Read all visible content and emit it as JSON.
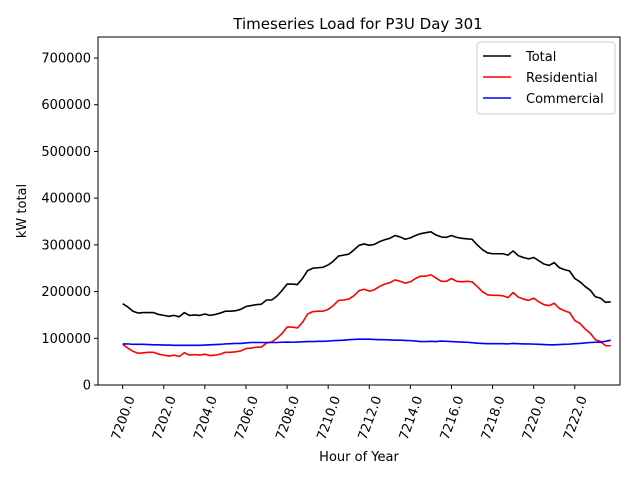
{
  "chart_data": {
    "type": "line",
    "title": "Timeseries Load for P3U   Day 301",
    "xlabel": "Hour of Year",
    "ylabel": "kW total",
    "xlim": [
      7198.8,
      7224.2
    ],
    "ylim": [
      0,
      745000
    ],
    "xticks": [
      7200,
      7202,
      7204,
      7206,
      7208,
      7210,
      7212,
      7214,
      7216,
      7218,
      7220,
      7222
    ],
    "xtick_labels": [
      "7200.0",
      "7202.0",
      "7204.0",
      "7206.0",
      "7208.0",
      "7210.0",
      "7212.0",
      "7214.0",
      "7216.0",
      "7218.0",
      "7220.0",
      "7222.0"
    ],
    "yticks": [
      0,
      100000,
      200000,
      300000,
      400000,
      500000,
      600000,
      700000
    ],
    "ytick_labels": [
      "0",
      "100000",
      "200000",
      "300000",
      "400000",
      "500000",
      "600000",
      "700000"
    ],
    "legend_position": "top-right",
    "grid": false,
    "series": [
      {
        "name": "Total",
        "color": "#000000",
        "x": [
          7200.0,
          7200.25,
          7200.5,
          7200.75,
          7201.0,
          7201.25,
          7201.5,
          7201.75,
          7202.0,
          7202.25,
          7202.5,
          7202.75,
          7203.0,
          7203.25,
          7203.5,
          7203.75,
          7204.0,
          7204.25,
          7204.5,
          7204.75,
          7205.0,
          7205.25,
          7205.5,
          7205.75,
          7206.0,
          7206.25,
          7206.5,
          7206.75,
          7207.0,
          7207.25,
          7207.5,
          7207.75,
          7208.0,
          7208.25,
          7208.5,
          7208.75,
          7209.0,
          7209.25,
          7209.5,
          7209.75,
          7210.0,
          7210.25,
          7210.5,
          7210.75,
          7211.0,
          7211.25,
          7211.5,
          7211.75,
          7212.0,
          7212.25,
          7212.5,
          7212.75,
          7213.0,
          7213.25,
          7213.5,
          7213.75,
          7214.0,
          7214.25,
          7214.5,
          7214.75,
          7215.0,
          7215.25,
          7215.5,
          7215.75,
          7216.0,
          7216.25,
          7216.5,
          7216.75,
          7217.0,
          7217.25,
          7217.5,
          7217.75,
          7218.0,
          7218.25,
          7218.5,
          7218.75,
          7219.0,
          7219.25,
          7219.5,
          7219.75,
          7220.0,
          7220.25,
          7220.5,
          7220.75,
          7221.0,
          7221.25,
          7221.5,
          7221.75,
          7222.0,
          7222.25,
          7222.5,
          7222.75,
          7223.0,
          7223.25,
          7223.5,
          7223.75
        ],
        "values": [
          174000,
          167000,
          158000,
          154000,
          155000,
          155000,
          155000,
          151000,
          149000,
          147000,
          149000,
          146000,
          155000,
          149000,
          150000,
          149000,
          152000,
          149000,
          151000,
          154000,
          158000,
          158000,
          159000,
          162000,
          168000,
          170000,
          172000,
          173000,
          182000,
          182000,
          190000,
          202000,
          216000,
          216000,
          215000,
          228000,
          245000,
          250000,
          251000,
          252000,
          257000,
          265000,
          276000,
          278000,
          280000,
          289000,
          299000,
          302000,
          299000,
          301000,
          307000,
          311000,
          314000,
          320000,
          317000,
          312000,
          315000,
          320000,
          324000,
          326000,
          328000,
          321000,
          317000,
          316000,
          320000,
          316000,
          314000,
          313000,
          312000,
          300000,
          290000,
          283000,
          281000,
          281000,
          281000,
          278000,
          287000,
          277000,
          273000,
          270000,
          273000,
          266000,
          259000,
          256000,
          262000,
          251000,
          247000,
          244000,
          228000,
          221000,
          211000,
          203000,
          189000,
          186000,
          177000,
          178000
        ]
      },
      {
        "name": "Residential",
        "color": "#ff0000",
        "x": [
          7200.0,
          7200.25,
          7200.5,
          7200.75,
          7201.0,
          7201.25,
          7201.5,
          7201.75,
          7202.0,
          7202.25,
          7202.5,
          7202.75,
          7203.0,
          7203.25,
          7203.5,
          7203.75,
          7204.0,
          7204.25,
          7204.5,
          7204.75,
          7205.0,
          7205.25,
          7205.5,
          7205.75,
          7206.0,
          7206.25,
          7206.5,
          7206.75,
          7207.0,
          7207.25,
          7207.5,
          7207.75,
          7208.0,
          7208.25,
          7208.5,
          7208.75,
          7209.0,
          7209.25,
          7209.5,
          7209.75,
          7210.0,
          7210.25,
          7210.5,
          7210.75,
          7211.0,
          7211.25,
          7211.5,
          7211.75,
          7212.0,
          7212.25,
          7212.5,
          7212.75,
          7213.0,
          7213.25,
          7213.5,
          7213.75,
          7214.0,
          7214.25,
          7214.5,
          7214.75,
          7215.0,
          7215.25,
          7215.5,
          7215.75,
          7216.0,
          7216.25,
          7216.5,
          7216.75,
          7217.0,
          7217.25,
          7217.5,
          7217.75,
          7218.0,
          7218.25,
          7218.5,
          7218.75,
          7219.0,
          7219.25,
          7219.5,
          7219.75,
          7220.0,
          7220.25,
          7220.5,
          7220.75,
          7221.0,
          7221.25,
          7221.5,
          7221.75,
          7222.0,
          7222.25,
          7222.5,
          7222.75,
          7223.0,
          7223.25,
          7223.5,
          7223.75
        ],
        "values": [
          87000,
          79000,
          72000,
          68000,
          69000,
          70000,
          70000,
          66000,
          64000,
          62000,
          64000,
          61000,
          69000,
          64000,
          65000,
          64000,
          66000,
          63000,
          64000,
          66000,
          70000,
          70000,
          71000,
          73000,
          78000,
          79000,
          81000,
          81000,
          90000,
          92000,
          100000,
          110000,
          124000,
          124000,
          122000,
          134000,
          152000,
          157000,
          158000,
          158000,
          162000,
          170000,
          181000,
          182000,
          184000,
          191000,
          202000,
          205000,
          201000,
          204000,
          211000,
          216000,
          219000,
          225000,
          222000,
          218000,
          221000,
          228000,
          233000,
          233000,
          236000,
          229000,
          222000,
          222000,
          228000,
          222000,
          221000,
          222000,
          221000,
          211000,
          200000,
          193000,
          192000,
          192000,
          191000,
          187000,
          198000,
          188000,
          184000,
          181000,
          186000,
          178000,
          172000,
          170000,
          175000,
          164000,
          159000,
          155000,
          138000,
          132000,
          120000,
          111000,
          97000,
          93000,
          84000,
          84000
        ]
      },
      {
        "name": "Commercial",
        "color": "#0000ff",
        "x": [
          7200.0,
          7200.25,
          7200.5,
          7200.75,
          7201.0,
          7201.25,
          7201.5,
          7201.75,
          7202.0,
          7202.25,
          7202.5,
          7202.75,
          7203.0,
          7203.25,
          7203.5,
          7203.75,
          7204.0,
          7204.25,
          7204.5,
          7204.75,
          7205.0,
          7205.25,
          7205.5,
          7205.75,
          7206.0,
          7206.25,
          7206.5,
          7206.75,
          7207.0,
          7207.25,
          7207.5,
          7207.75,
          7208.0,
          7208.25,
          7208.5,
          7208.75,
          7209.0,
          7209.25,
          7209.5,
          7209.75,
          7210.0,
          7210.25,
          7210.5,
          7210.75,
          7211.0,
          7211.25,
          7211.5,
          7211.75,
          7212.0,
          7212.25,
          7212.5,
          7212.75,
          7213.0,
          7213.25,
          7213.5,
          7213.75,
          7214.0,
          7214.25,
          7214.5,
          7214.75,
          7215.0,
          7215.25,
          7215.5,
          7215.75,
          7216.0,
          7216.25,
          7216.5,
          7216.75,
          7217.0,
          7217.25,
          7217.5,
          7217.75,
          7218.0,
          7218.25,
          7218.5,
          7218.75,
          7219.0,
          7219.25,
          7219.5,
          7219.75,
          7220.0,
          7220.25,
          7220.5,
          7220.75,
          7221.0,
          7221.25,
          7221.5,
          7221.75,
          7222.0,
          7222.25,
          7222.5,
          7222.75,
          7223.0,
          7223.25,
          7223.5,
          7223.75
        ],
        "values": [
          88000,
          88000,
          87000,
          87000,
          87000,
          86500,
          86000,
          86000,
          85500,
          85500,
          85000,
          85000,
          85000,
          85000,
          85000,
          85000,
          85500,
          86000,
          86500,
          87000,
          88000,
          88500,
          89000,
          89000,
          90000,
          91000,
          91000,
          91000,
          91000,
          91000,
          91000,
          91500,
          92000,
          91500,
          92000,
          92500,
          93000,
          93000,
          93500,
          93500,
          94000,
          95000,
          95500,
          96000,
          97000,
          97500,
          98000,
          98000,
          98000,
          97500,
          97000,
          97000,
          96500,
          96000,
          96000,
          95500,
          95000,
          94000,
          93000,
          93000,
          93500,
          93000,
          94000,
          93500,
          93000,
          92500,
          92000,
          91500,
          90500,
          89500,
          89000,
          88500,
          88500,
          88500,
          88500,
          88000,
          89000,
          88500,
          88000,
          88000,
          87500,
          87000,
          86500,
          86000,
          86000,
          86500,
          87000,
          87500,
          88500,
          89000,
          90000,
          91000,
          91500,
          92000,
          93500,
          96000
        ]
      }
    ]
  }
}
